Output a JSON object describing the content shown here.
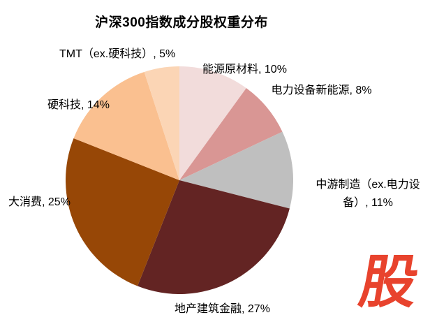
{
  "page": {
    "background_color": "#FFFFFF"
  },
  "chart_data": {
    "type": "pie",
    "title": "沪深300指数成分股权重分布",
    "start_angle_deg": 0,
    "direction": "clockwise",
    "legend_position": "none",
    "slices": [
      {
        "id": "energy",
        "label": "能源原材料",
        "value": 10,
        "color": "#F2DCDB"
      },
      {
        "id": "power",
        "label": "电力设备新能源",
        "value": 8,
        "color": "#D99694"
      },
      {
        "id": "midstream",
        "label": "中游制造（ex.电力设备）",
        "value": 11,
        "color": "#BFBFBF"
      },
      {
        "id": "realestate",
        "label": "地产建筑金融",
        "value": 27,
        "color": "#632423"
      },
      {
        "id": "consumer",
        "label": "大消费",
        "value": 25,
        "color": "#974706"
      },
      {
        "id": "hardtech",
        "label": "硬科技",
        "value": 14,
        "color": "#FAC090"
      },
      {
        "id": "tmt",
        "label": "TMT（ex.硬科技）",
        "value": 5,
        "color": "#FBD5B5"
      }
    ],
    "data_labels": {
      "energy": "能源原材料, 10%",
      "power": "电力设备新能源, 8%",
      "midstream": "中游制造（ex.电力设备）, 11%",
      "realestate": "地产建筑金融, 27%",
      "consumer": "大消费, 25%",
      "hardtech": "硬科技, 14%",
      "tmt": "TMT（ex.硬科技）, 5%"
    }
  },
  "watermark": {
    "text": "股",
    "color": "#E8432D"
  }
}
